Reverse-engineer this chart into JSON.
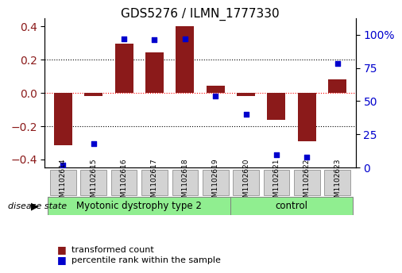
{
  "title": "GDS5276 / ILMN_1777330",
  "samples": [
    "GSM1102614",
    "GSM1102615",
    "GSM1102616",
    "GSM1102617",
    "GSM1102618",
    "GSM1102619",
    "GSM1102620",
    "GSM1102621",
    "GSM1102622",
    "GSM1102623"
  ],
  "bar_values": [
    -0.315,
    -0.02,
    0.295,
    0.245,
    0.4,
    0.045,
    -0.02,
    -0.16,
    -0.29,
    0.08
  ],
  "scatter_values": [
    2,
    18,
    97,
    96,
    97,
    54,
    40,
    10,
    8,
    78
  ],
  "bar_color": "#8B1A1A",
  "scatter_color": "#0000CD",
  "ylim_left": [
    -0.45,
    0.45
  ],
  "ylim_right": [
    0,
    112.5
  ],
  "yticks_left": [
    -0.4,
    -0.2,
    0.0,
    0.2,
    0.4
  ],
  "yticks_right": [
    0,
    25,
    50,
    75,
    100
  ],
  "ytick_labels_right": [
    "0",
    "25",
    "50",
    "75",
    "100%"
  ],
  "hline_positions": [
    -0.2,
    0.0,
    0.2
  ],
  "hline_colors": [
    "black",
    "red",
    "black"
  ],
  "hline_styles": [
    "dotted",
    "dotted",
    "dotted"
  ],
  "group1_label": "Myotonic dystrophy type 2",
  "group2_label": "control",
  "group1_indices": [
    0,
    1,
    2,
    3,
    4,
    5
  ],
  "group2_indices": [
    6,
    7,
    8,
    9
  ],
  "group1_color": "#90EE90",
  "group2_color": "#90EE90",
  "disease_state_label": "disease state",
  "legend_bar_label": "transformed count",
  "legend_scatter_label": "percentile rank within the sample",
  "bar_width": 0.6,
  "left_ylabel_color": "#8B1A1A",
  "right_ylabel_color": "#0000CD",
  "bg_color": "#FFFFFF",
  "tick_label_box_color": "#D3D3D3",
  "tick_label_box_edgecolor": "#808080"
}
